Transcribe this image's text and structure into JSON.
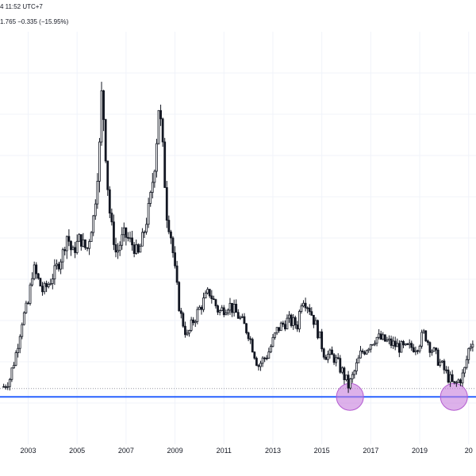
{
  "header": {
    "time_text": "4 11:52 UTC+7",
    "change_text": "1.765  −0.335 (−15.95%)"
  },
  "colors": {
    "candle": "#131722",
    "support_line": "#2962ff",
    "highlight_fill": "#c77ddc",
    "highlight_stroke": "#b45bd0",
    "grid": "#f0f3fa",
    "dotted_line": "#9598a1"
  },
  "chart_data": {
    "type": "candlestick",
    "title": "",
    "xlabel": "",
    "ylabel": "",
    "x_ticks": [
      "2003",
      "2005",
      "2007",
      "2009",
      "2011",
      "2013",
      "2015",
      "2017",
      "2019",
      "20"
    ],
    "xlim": [
      2001.85,
      2021.3
    ],
    "ylim": [
      0,
      100
    ],
    "grid": true,
    "last_change": "−0.335",
    "last_change_pct": "−15.95%",
    "support_level": 11.5,
    "dotted_level": 13.5,
    "highlight_circles": [
      {
        "x": 2016.15,
        "y": 11.5
      },
      {
        "x": 2020.4,
        "y": 11.5
      }
    ],
    "path": [
      [
        2002.0,
        14
      ],
      [
        2002.25,
        16
      ],
      [
        2002.5,
        22
      ],
      [
        2002.75,
        30
      ],
      [
        2003.0,
        34
      ],
      [
        2003.2,
        43
      ],
      [
        2003.4,
        40
      ],
      [
        2003.6,
        37
      ],
      [
        2003.85,
        39
      ],
      [
        2004.1,
        42
      ],
      [
        2004.4,
        46
      ],
      [
        2004.6,
        51
      ],
      [
        2004.8,
        46
      ],
      [
        2005.1,
        50
      ],
      [
        2005.4,
        47
      ],
      [
        2005.7,
        56
      ],
      [
        2005.9,
        70
      ],
      [
        2006.0,
        85
      ],
      [
        2006.1,
        78
      ],
      [
        2006.2,
        66
      ],
      [
        2006.35,
        55
      ],
      [
        2006.6,
        46
      ],
      [
        2006.9,
        51
      ],
      [
        2007.2,
        49
      ],
      [
        2007.5,
        46
      ],
      [
        2007.8,
        53
      ],
      [
        2008.0,
        60
      ],
      [
        2008.2,
        69
      ],
      [
        2008.35,
        83
      ],
      [
        2008.5,
        72
      ],
      [
        2008.65,
        56
      ],
      [
        2008.85,
        50
      ],
      [
        2009.0,
        42
      ],
      [
        2009.2,
        32
      ],
      [
        2009.5,
        26
      ],
      [
        2009.75,
        30
      ],
      [
        2010.1,
        34
      ],
      [
        2010.4,
        37
      ],
      [
        2010.8,
        32
      ],
      [
        2011.2,
        34
      ],
      [
        2011.6,
        31
      ],
      [
        2012.0,
        27
      ],
      [
        2012.4,
        19
      ],
      [
        2012.8,
        22
      ],
      [
        2013.2,
        28
      ],
      [
        2013.6,
        30
      ],
      [
        2014.0,
        29
      ],
      [
        2014.2,
        36
      ],
      [
        2014.5,
        33
      ],
      [
        2014.8,
        28
      ],
      [
        2015.1,
        22
      ],
      [
        2015.5,
        21
      ],
      [
        2015.8,
        18
      ],
      [
        2016.1,
        14
      ],
      [
        2016.3,
        17
      ],
      [
        2016.6,
        22
      ],
      [
        2016.9,
        24
      ],
      [
        2017.2,
        26
      ],
      [
        2017.6,
        25
      ],
      [
        2018.0,
        24
      ],
      [
        2018.4,
        23
      ],
      [
        2018.9,
        24
      ],
      [
        2019.2,
        27
      ],
      [
        2019.4,
        24
      ],
      [
        2019.8,
        20
      ],
      [
        2020.1,
        17
      ],
      [
        2020.4,
        14
      ],
      [
        2020.8,
        17
      ],
      [
        2021.0,
        23
      ],
      [
        2021.2,
        26
      ]
    ]
  }
}
